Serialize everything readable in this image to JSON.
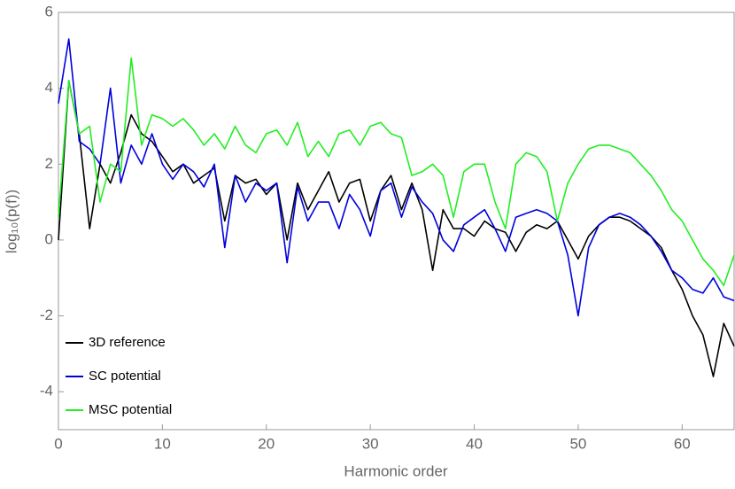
{
  "chart_data": {
    "type": "line",
    "xlabel": "Harmonic order",
    "ylabel": "log₁₀(p(f))",
    "x": [
      0,
      1,
      2,
      3,
      4,
      5,
      6,
      7,
      8,
      9,
      10,
      11,
      12,
      13,
      14,
      15,
      16,
      17,
      18,
      19,
      20,
      21,
      22,
      23,
      24,
      25,
      26,
      27,
      28,
      29,
      30,
      31,
      32,
      33,
      34,
      35,
      36,
      37,
      38,
      39,
      40,
      41,
      42,
      43,
      44,
      45,
      46,
      47,
      48,
      49,
      50,
      51,
      52,
      53,
      54,
      55,
      56,
      57,
      58,
      59,
      60,
      61,
      62,
      63,
      64,
      65
    ],
    "series": [
      {
        "name": "3D reference",
        "color": "#000000",
        "values": [
          0.0,
          4.2,
          2.8,
          0.3,
          2.0,
          1.5,
          2.3,
          3.3,
          2.8,
          2.6,
          2.2,
          1.8,
          2.0,
          1.5,
          1.7,
          1.9,
          0.5,
          1.7,
          1.5,
          1.6,
          1.2,
          1.5,
          0.0,
          1.5,
          0.8,
          1.3,
          1.8,
          1.0,
          1.5,
          1.6,
          0.5,
          1.3,
          1.7,
          0.8,
          1.5,
          0.8,
          -0.8,
          0.8,
          0.3,
          0.3,
          0.1,
          0.5,
          0.3,
          0.2,
          -0.3,
          0.2,
          0.4,
          0.3,
          0.5,
          0.0,
          -0.5,
          0.1,
          0.4,
          0.6,
          0.6,
          0.5,
          0.3,
          0.1,
          -0.2,
          -0.8,
          -1.3,
          -2.0,
          -2.5,
          -3.6,
          -2.2,
          -2.8
        ]
      },
      {
        "name": "SC potential",
        "color": "#0000dd",
        "values": [
          3.6,
          5.3,
          2.6,
          2.4,
          2.0,
          4.0,
          1.5,
          2.5,
          2.0,
          2.8,
          2.0,
          1.6,
          2.0,
          1.8,
          1.4,
          2.0,
          -0.2,
          1.7,
          1.0,
          1.5,
          1.3,
          1.5,
          -0.6,
          1.4,
          0.5,
          1.0,
          1.0,
          0.3,
          1.2,
          0.8,
          0.1,
          1.3,
          1.5,
          0.6,
          1.4,
          1.0,
          0.7,
          0.0,
          -0.3,
          0.4,
          0.6,
          0.8,
          0.3,
          -0.3,
          0.6,
          0.7,
          0.8,
          0.7,
          0.5,
          -0.4,
          -2.0,
          -0.2,
          0.4,
          0.6,
          0.7,
          0.6,
          0.4,
          0.1,
          -0.3,
          -0.8,
          -1.0,
          -1.3,
          -1.4,
          -1.0,
          -1.5,
          -1.6
        ]
      },
      {
        "name": "MSC potential",
        "color": "#22ee22",
        "values": [
          0.6,
          4.2,
          2.8,
          3.0,
          1.0,
          2.0,
          1.8,
          4.8,
          2.5,
          3.3,
          3.2,
          3.0,
          3.2,
          2.9,
          2.5,
          2.8,
          2.4,
          3.0,
          2.5,
          2.3,
          2.8,
          2.9,
          2.5,
          3.1,
          2.2,
          2.6,
          2.2,
          2.8,
          2.9,
          2.5,
          3.0,
          3.1,
          2.8,
          2.7,
          1.7,
          1.8,
          2.0,
          1.7,
          0.6,
          1.8,
          2.0,
          2.0,
          1.0,
          0.3,
          2.0,
          2.3,
          2.2,
          1.8,
          0.5,
          1.5,
          2.0,
          2.4,
          2.5,
          2.5,
          2.4,
          2.3,
          2.0,
          1.7,
          1.3,
          0.8,
          0.5,
          0.0,
          -0.5,
          -0.8,
          -1.2,
          -0.4
        ]
      }
    ],
    "xlim": [
      0,
      65
    ],
    "xticks": [
      0,
      10,
      20,
      30,
      40,
      50,
      60
    ],
    "ylim": [
      -5,
      6
    ],
    "yticks": [
      -4,
      -2,
      0,
      2,
      4,
      6
    ],
    "legend": "lower left"
  }
}
